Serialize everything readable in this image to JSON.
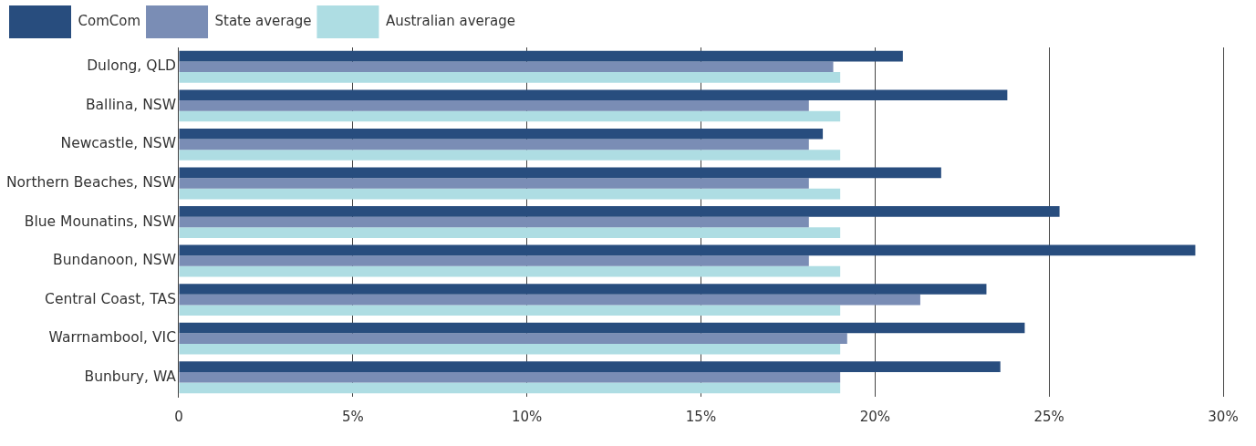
{
  "chart_data": {
    "type": "bar",
    "orientation": "horizontal",
    "categories": [
      "Dulong, QLD",
      "Ballina, NSW",
      "Newcastle, NSW",
      "Northern Beaches, NSW",
      "Blue Mounatins, NSW",
      "Bundanoon, NSW",
      "Central Coast, TAS",
      "Warrnambool, VIC",
      "Bunbury, WA"
    ],
    "series": [
      {
        "name": "ComCom",
        "color": "#284d7e",
        "values": [
          20.8,
          23.8,
          18.5,
          21.9,
          25.3,
          29.2,
          23.2,
          24.3,
          23.6
        ]
      },
      {
        "name": "State average",
        "color": "#7a8db5",
        "values": [
          18.8,
          18.1,
          18.1,
          18.1,
          18.1,
          18.1,
          21.3,
          19.2,
          19.0
        ]
      },
      {
        "name": "Australian average",
        "color": "#aedde3",
        "values": [
          19.0,
          19.0,
          19.0,
          19.0,
          19.0,
          19.0,
          19.0,
          19.0,
          19.0
        ]
      }
    ],
    "xlim": [
      0,
      30
    ],
    "xticks": [
      0,
      {
        "value": 5,
        "label": "5%"
      },
      {
        "value": 10,
        "label": "10%"
      },
      {
        "value": 15,
        "label": "15%"
      },
      {
        "value": 20,
        "label": "20%"
      },
      {
        "value": 25,
        "label": "25%"
      },
      {
        "value": 30,
        "label": "30%"
      }
    ],
    "grid": "x",
    "legend": "top"
  }
}
